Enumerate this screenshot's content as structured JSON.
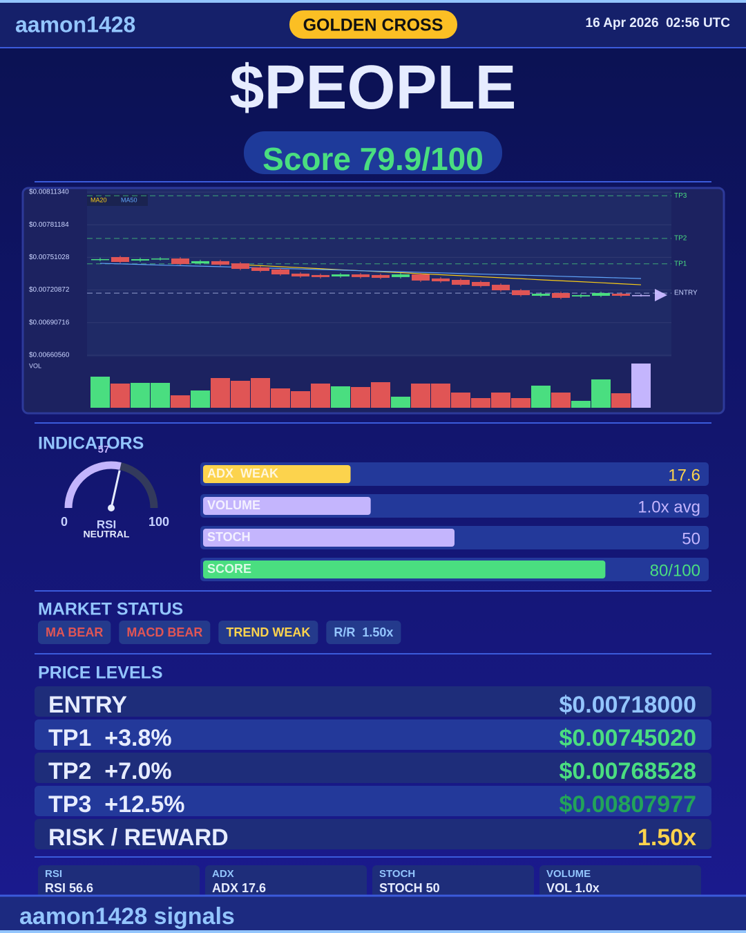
{
  "header": {
    "user": "aamon1428",
    "signal": "GOLDEN CROSS",
    "timestamp": "16 Apr 2026  02:56 UTC"
  },
  "title": "$PEOPLE",
  "score": "Score 79.9/100",
  "chart_data": {
    "type": "candlestick",
    "up_color": "#4ade80",
    "down_color": "#e05555",
    "last_color": "#c4b5fd",
    "open": [
      0.007487,
      0.007513,
      0.007481,
      0.007494,
      0.0075,
      0.007455,
      0.007475,
      0.007455,
      0.007417,
      0.007398,
      0.00736,
      0.007347,
      0.007334,
      0.007353,
      0.007347,
      0.007328,
      0.007353,
      0.007315,
      0.007302,
      0.007283,
      0.007257,
      0.007206,
      0.007155,
      0.007181,
      0.007149,
      0.007155,
      0.007174,
      0.007161
    ],
    "high": [
      0.007507,
      0.007526,
      0.007507,
      0.007513,
      0.007513,
      0.007488,
      0.007488,
      0.007468,
      0.00743,
      0.007411,
      0.007373,
      0.00736,
      0.007366,
      0.007366,
      0.00736,
      0.007366,
      0.007366,
      0.007328,
      0.007315,
      0.007296,
      0.00727,
      0.007219,
      0.007187,
      0.007194,
      0.007174,
      0.007194,
      0.007187,
      0.007174
    ],
    "low": [
      0.007474,
      0.007455,
      0.007468,
      0.007481,
      0.007436,
      0.007442,
      0.00743,
      0.007391,
      0.007372,
      0.00734,
      0.007321,
      0.007315,
      0.007321,
      0.007315,
      0.007308,
      0.007315,
      0.007283,
      0.007276,
      0.007244,
      0.007232,
      0.007193,
      0.007148,
      0.007142,
      0.007123,
      0.007136,
      0.007142,
      0.007142,
      0.007148
    ],
    "close": [
      0.007494,
      0.007468,
      0.007494,
      0.0075,
      0.007449,
      0.007475,
      0.007443,
      0.007404,
      0.007385,
      0.007353,
      0.007334,
      0.007328,
      0.007353,
      0.007328,
      0.007321,
      0.007353,
      0.007296,
      0.007289,
      0.007257,
      0.007245,
      0.007206,
      0.007161,
      0.007174,
      0.007136,
      0.007161,
      0.007181,
      0.007155,
      0.007161
    ],
    "ma_series": [
      {
        "name": "MA20",
        "color": "#facc15",
        "values": [
          null,
          null,
          null,
          null,
          null,
          null,
          null,
          0.007443,
          0.007434,
          0.007424,
          0.007415,
          0.007406,
          0.007396,
          0.007387,
          0.007378,
          0.007369,
          0.007359,
          0.00735,
          0.007341,
          0.007331,
          0.007322,
          0.007313,
          0.007303,
          0.007294,
          0.007285,
          0.007276,
          0.007266,
          0.007257
        ]
      },
      {
        "name": "MA50",
        "color": "#60a5fa",
        "values": [
          0.007455,
          0.00745,
          0.007445,
          0.007439,
          0.007434,
          0.007429,
          0.007424,
          0.007419,
          0.007413,
          0.007408,
          0.007403,
          0.007398,
          0.007393,
          0.007387,
          0.007382,
          0.007377,
          0.007372,
          0.007367,
          0.007361,
          0.007356,
          0.007351,
          0.007346,
          0.007341,
          0.007335,
          0.00733,
          0.007325,
          0.00732,
          0.007315
        ]
      }
    ],
    "levels": [
      {
        "name": "TP3",
        "value": 0.00807977,
        "color": "#4ade80"
      },
      {
        "name": "TP2",
        "value": 0.00768528,
        "color": "#4ade80"
      },
      {
        "name": "TP1",
        "value": 0.0074502,
        "color": "#4ade80"
      },
      {
        "name": "ENTRY",
        "value": 0.00718,
        "color": "#c7d2fe"
      }
    ],
    "volume": {
      "label": "VOL",
      "values": [
        45,
        35,
        36,
        36,
        18,
        25,
        43,
        39,
        43,
        28,
        24,
        35,
        31,
        30,
        37,
        16,
        35,
        35,
        22,
        14,
        22,
        14,
        32,
        22,
        10,
        41,
        21,
        64
      ]
    },
    "ylim": [
      0.0066056,
      0.0081134
    ],
    "yticks": [
      {
        "value": 0.0081134,
        "label": "$0.00811340"
      },
      {
        "value": 0.00781184,
        "label": "$0.00781184"
      },
      {
        "value": 0.00751028,
        "label": "$0.00751028"
      },
      {
        "value": 0.00720872,
        "label": "$0.00720872"
      },
      {
        "value": 0.00690716,
        "label": "$0.00690716"
      },
      {
        "value": 0.0066056,
        "label": "$0.00660560"
      }
    ],
    "grid": true
  },
  "indicators": {
    "title": "INDICATORS",
    "rsi": {
      "value": 57,
      "min": 0,
      "max": 100,
      "label": "RSI",
      "state": "NEUTRAL"
    },
    "bars": [
      {
        "label": "ADX  WEAK",
        "value": 17.6,
        "max": 60,
        "color": "#fcd34d"
      },
      {
        "label": "VOLUME",
        "value": 1.0,
        "value_label": "1.0x avg",
        "max": 3,
        "color": "#c4b5fd"
      },
      {
        "label": "STOCH",
        "value": 50,
        "max": 100,
        "color": "#c4b5fd"
      },
      {
        "label": "SCORE",
        "value": 80,
        "value_label": "80/100",
        "max": 100,
        "color": "#4ade80"
      }
    ]
  },
  "market_status": {
    "title": "MARKET STATUS",
    "chips": [
      {
        "text": "MA BEAR",
        "color": "#e05555"
      },
      {
        "text": "MACD BEAR",
        "color": "#e05555"
      },
      {
        "text": "TREND WEAK",
        "color": "#fcd34d"
      },
      {
        "text": "R/R  1.50x",
        "color": "#93c5fd"
      }
    ]
  },
  "price_levels": {
    "title": "PRICE LEVELS",
    "rows": [
      {
        "name": "ENTRY",
        "price": "$0.00718000",
        "color": "#93c5fd"
      },
      {
        "name": "TP1  +3.8%",
        "price": "$0.00745020",
        "color": "#4ade80"
      },
      {
        "name": "TP2  +7.0%",
        "price": "$0.00768528",
        "color": "#4ade80"
      },
      {
        "name": "TP3  +12.5%",
        "price": "$0.00807977",
        "color": "#22a35a"
      },
      {
        "name": "RISK / REWARD",
        "price": "1.50x",
        "color": "#fcd34d"
      }
    ]
  },
  "stats": [
    {
      "label": "RSI",
      "value": "RSI 56.6"
    },
    {
      "label": "ADX",
      "value": "ADX 17.6"
    },
    {
      "label": "STOCH",
      "value": "STOCH 50"
    },
    {
      "label": "VOLUME",
      "value": "VOL 1.0x"
    }
  ],
  "footer": "aamon1428 signals"
}
